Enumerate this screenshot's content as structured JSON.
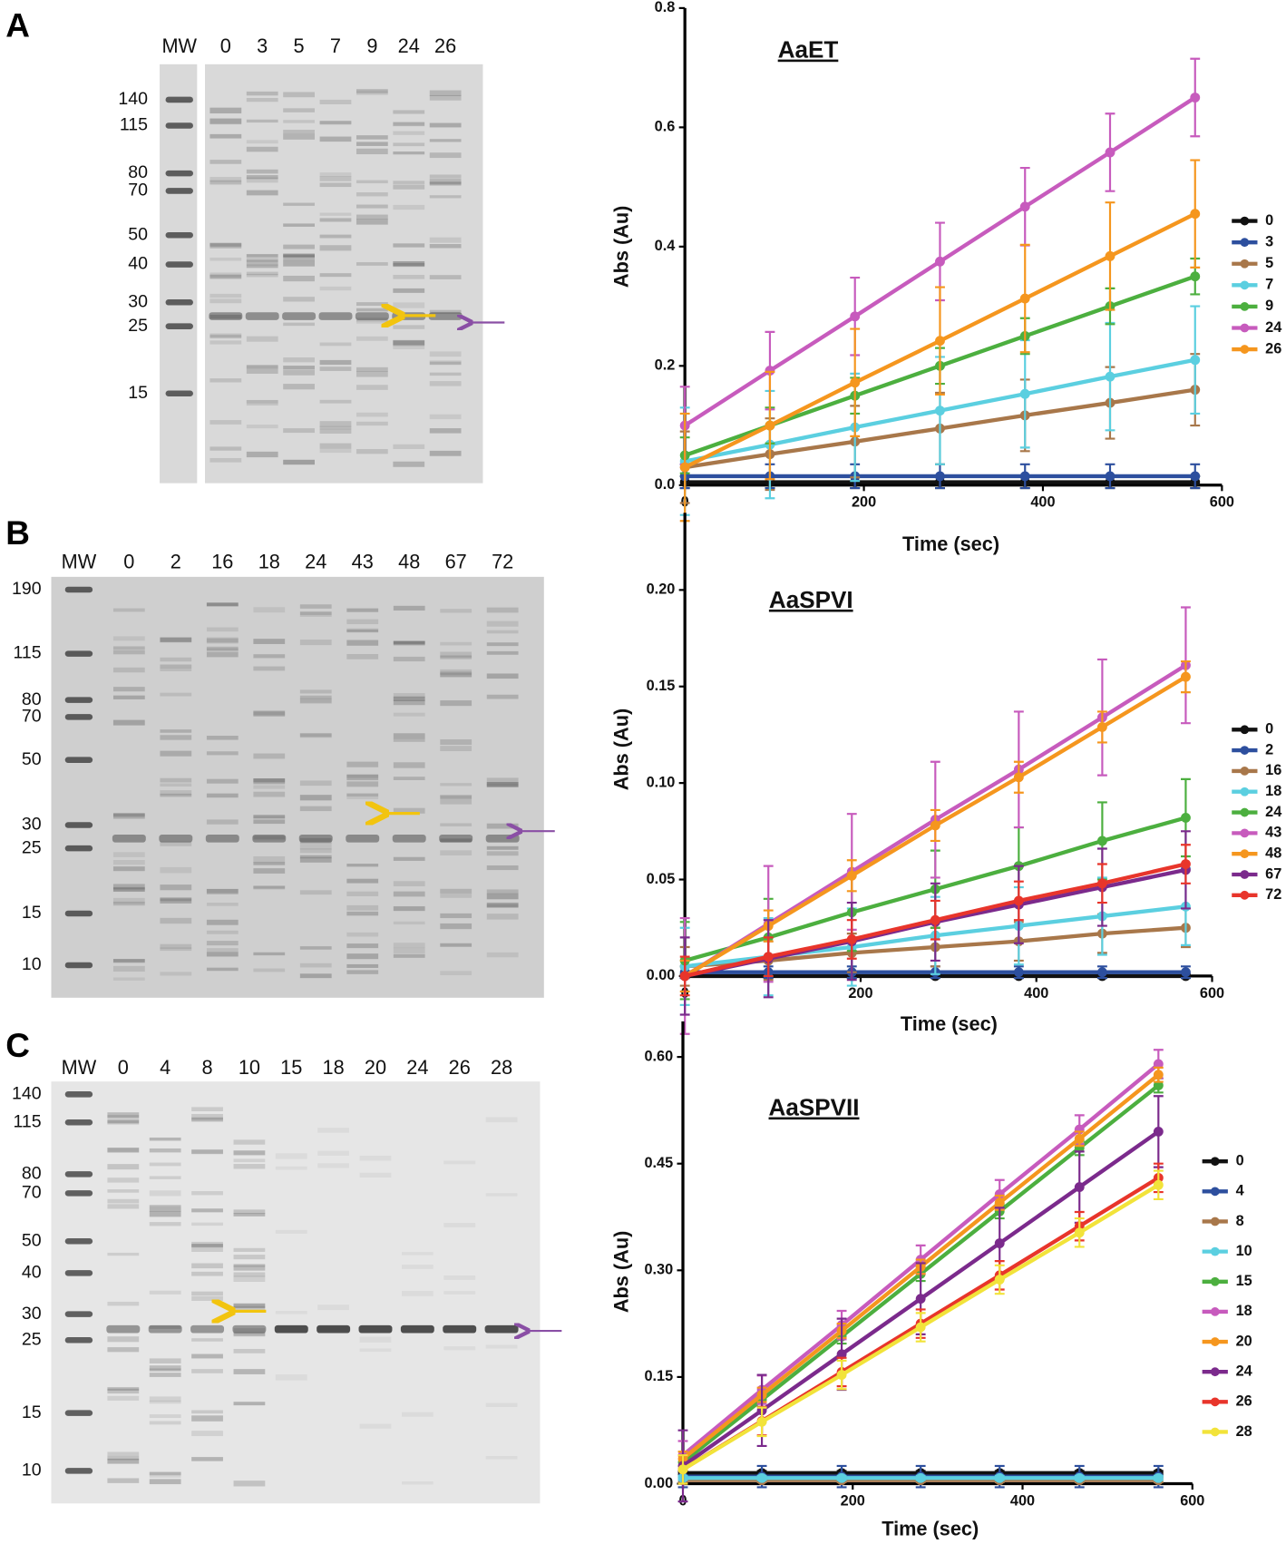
{
  "gels": [
    {
      "panel": "A",
      "mw": "MW",
      "lanes": [
        "0",
        "3",
        "5",
        "7",
        "9",
        "24",
        "26"
      ],
      "markers": [
        140,
        115,
        80,
        70,
        50,
        40,
        30,
        25,
        15
      ]
    },
    {
      "panel": "B",
      "mw": "MW",
      "lanes": [
        "0",
        "2",
        "16",
        "18",
        "24",
        "43",
        "48",
        "67",
        "72"
      ],
      "markers": [
        190,
        115,
        80,
        70,
        50,
        30,
        25,
        15,
        10
      ]
    },
    {
      "panel": "C",
      "mw": "MW",
      "lanes": [
        "0",
        "4",
        "8",
        "10",
        "15",
        "18",
        "20",
        "24",
        "26",
        "28"
      ],
      "markers": [
        140,
        115,
        80,
        70,
        50,
        40,
        30,
        25,
        15,
        10
      ]
    }
  ],
  "chart_data": [
    {
      "type": "line",
      "title": "AaET",
      "y_label": "Abs (Au)",
      "x_label": "Time (sec)",
      "legend": "right",
      "x": [
        0,
        95,
        190,
        285,
        380,
        475,
        570
      ],
      "xlim": [
        0,
        600
      ],
      "xticks": [
        0,
        200,
        400,
        600
      ],
      "ylim": [
        0,
        0.8
      ],
      "yticks": [
        {
          "value": 0,
          "label": "0.0"
        },
        0.2,
        0.4,
        0.6,
        0.8
      ],
      "series": [
        {
          "name": "0",
          "color": "#111111",
          "error": 0.01,
          "values": [
            0.005,
            0.005,
            0.005,
            0.005,
            0.005,
            0.005,
            0.005
          ]
        },
        {
          "name": "3",
          "color": "#2d4f9e",
          "error": 0.02,
          "values": [
            0.015,
            0.015,
            0.015,
            0.015,
            0.015,
            0.015,
            0.015
          ]
        },
        {
          "name": "5",
          "color": "#a8774a",
          "error": 0.06,
          "values": [
            0.03,
            0.052,
            0.073,
            0.095,
            0.117,
            0.138,
            0.16
          ]
        },
        {
          "name": "7",
          "color": "#5bcfe0",
          "error": 0.09,
          "values": [
            0.04,
            0.068,
            0.097,
            0.125,
            0.153,
            0.182,
            0.21
          ]
        },
        {
          "name": "9",
          "color": "#4caf3f",
          "error": 0.03,
          "values": [
            0.05,
            0.1,
            0.15,
            0.2,
            0.25,
            0.3,
            0.35
          ]
        },
        {
          "name": "24",
          "color": "#c75bbd",
          "error": 0.065,
          "values": [
            0.1,
            0.192,
            0.283,
            0.375,
            0.467,
            0.558,
            0.65
          ]
        },
        {
          "name": "26",
          "color": "#f5961e",
          "error": 0.09,
          "values": [
            0.03,
            0.1,
            0.172,
            0.242,
            0.313,
            0.384,
            0.455
          ]
        }
      ]
    },
    {
      "type": "line",
      "title": "AaSPVI",
      "y_label": "Abs (Au)",
      "x_label": "Time (sec)",
      "legend": "right",
      "x": [
        0,
        95,
        190,
        285,
        380,
        475,
        570
      ],
      "xlim": [
        0,
        600
      ],
      "xticks": [
        0,
        200,
        400,
        600
      ],
      "ylim": [
        0,
        0.24
      ],
      "yticks": [
        {
          "value": 0,
          "label": "0.00"
        },
        {
          "value": 0.05,
          "label": "0.05"
        },
        {
          "value": 0.1,
          "label": "0.10"
        },
        {
          "value": 0.15,
          "label": "0.15"
        },
        {
          "value": 0.2,
          "label": "0.20"
        }
      ],
      "series": [
        {
          "name": "0",
          "color": "#111111",
          "error": 0.001,
          "values": [
            0,
            0,
            0,
            0,
            0,
            0,
            0
          ]
        },
        {
          "name": "2",
          "color": "#2d4f9e",
          "error": 0.003,
          "values": [
            0.002,
            0.002,
            0.002,
            0.002,
            0.002,
            0.002,
            0.002
          ]
        },
        {
          "name": "16",
          "color": "#a8774a",
          "error": 0.01,
          "values": [
            0.005,
            0.008,
            0.012,
            0.015,
            0.018,
            0.022,
            0.025
          ]
        },
        {
          "name": "18",
          "color": "#5bcfe0",
          "error": 0.02,
          "values": [
            0.005,
            0.01,
            0.015,
            0.021,
            0.026,
            0.031,
            0.036
          ]
        },
        {
          "name": "24",
          "color": "#4caf3f",
          "error": 0.02,
          "values": [
            0.008,
            0.02,
            0.033,
            0.045,
            0.057,
            0.07,
            0.082
          ]
        },
        {
          "name": "43",
          "color": "#c75bbd",
          "error": 0.03,
          "values": [
            0,
            0.027,
            0.054,
            0.081,
            0.107,
            0.134,
            0.161
          ]
        },
        {
          "name": "48",
          "color": "#f5961e",
          "error": 0.008,
          "values": [
            0,
            0.026,
            0.052,
            0.078,
            0.103,
            0.129,
            0.155
          ]
        },
        {
          "name": "67",
          "color": "#7b2a8c",
          "error": 0.02,
          "values": [
            0,
            0.009,
            0.018,
            0.028,
            0.037,
            0.046,
            0.055
          ]
        },
        {
          "name": "72",
          "color": "#e8352b",
          "error": 0.01,
          "values": [
            0,
            0.01,
            0.019,
            0.029,
            0.039,
            0.048,
            0.058
          ]
        }
      ]
    },
    {
      "type": "line",
      "title": "AaSPVII",
      "y_label": "Abs (Au)",
      "x_label": "Time (sec)",
      "legend": "right",
      "x": [
        0,
        93,
        187,
        280,
        373,
        467,
        560
      ],
      "xlim": [
        0,
        600
      ],
      "xticks": [
        0,
        200,
        400,
        600
      ],
      "ylim": [
        0,
        0.65
      ],
      "yticks": [
        {
          "value": 0,
          "label": "0.00"
        },
        {
          "value": 0.15,
          "label": "0.15"
        },
        {
          "value": 0.3,
          "label": "0.30"
        },
        {
          "value": 0.45,
          "label": "0.45"
        },
        {
          "value": 0.6,
          "label": "0.60"
        }
      ],
      "series": [
        {
          "name": "0",
          "color": "#111111",
          "error": 0.003,
          "values": [
            0.015,
            0.015,
            0.015,
            0.015,
            0.015,
            0.015,
            0.015
          ]
        },
        {
          "name": "4",
          "color": "#2d4f9e",
          "error": 0.015,
          "values": [
            0.01,
            0.01,
            0.01,
            0.01,
            0.01,
            0.01,
            0.01
          ]
        },
        {
          "name": "8",
          "color": "#a8774a",
          "error": 0.003,
          "values": [
            0.005,
            0.005,
            0.005,
            0.005,
            0.005,
            0.005,
            0.005
          ]
        },
        {
          "name": "10",
          "color": "#5bcfe0",
          "error": 0.003,
          "values": [
            0.008,
            0.008,
            0.008,
            0.008,
            0.008,
            0.008,
            0.008
          ]
        },
        {
          "name": "15",
          "color": "#4caf3f",
          "error": 0.01,
          "values": [
            0.03,
            0.118,
            0.207,
            0.295,
            0.383,
            0.472,
            0.56
          ]
        },
        {
          "name": "18",
          "color": "#c75bbd",
          "error": 0.02,
          "values": [
            0.04,
            0.132,
            0.223,
            0.315,
            0.407,
            0.498,
            0.59
          ]
        },
        {
          "name": "20",
          "color": "#f5961e",
          "error": 0.01,
          "values": [
            0.035,
            0.125,
            0.215,
            0.305,
            0.395,
            0.485,
            0.575
          ]
        },
        {
          "name": "24",
          "color": "#7b2a8c",
          "error": 0.05,
          "values": [
            0.025,
            0.103,
            0.182,
            0.26,
            0.338,
            0.417,
            0.495
          ]
        },
        {
          "name": "26",
          "color": "#e8352b",
          "error": 0.02,
          "values": [
            0.02,
            0.088,
            0.157,
            0.225,
            0.293,
            0.362,
            0.43
          ]
        },
        {
          "name": "28",
          "color": "#f2e33a",
          "error": 0.02,
          "values": [
            0.02,
            0.087,
            0.153,
            0.22,
            0.287,
            0.353,
            0.42
          ]
        }
      ]
    }
  ]
}
